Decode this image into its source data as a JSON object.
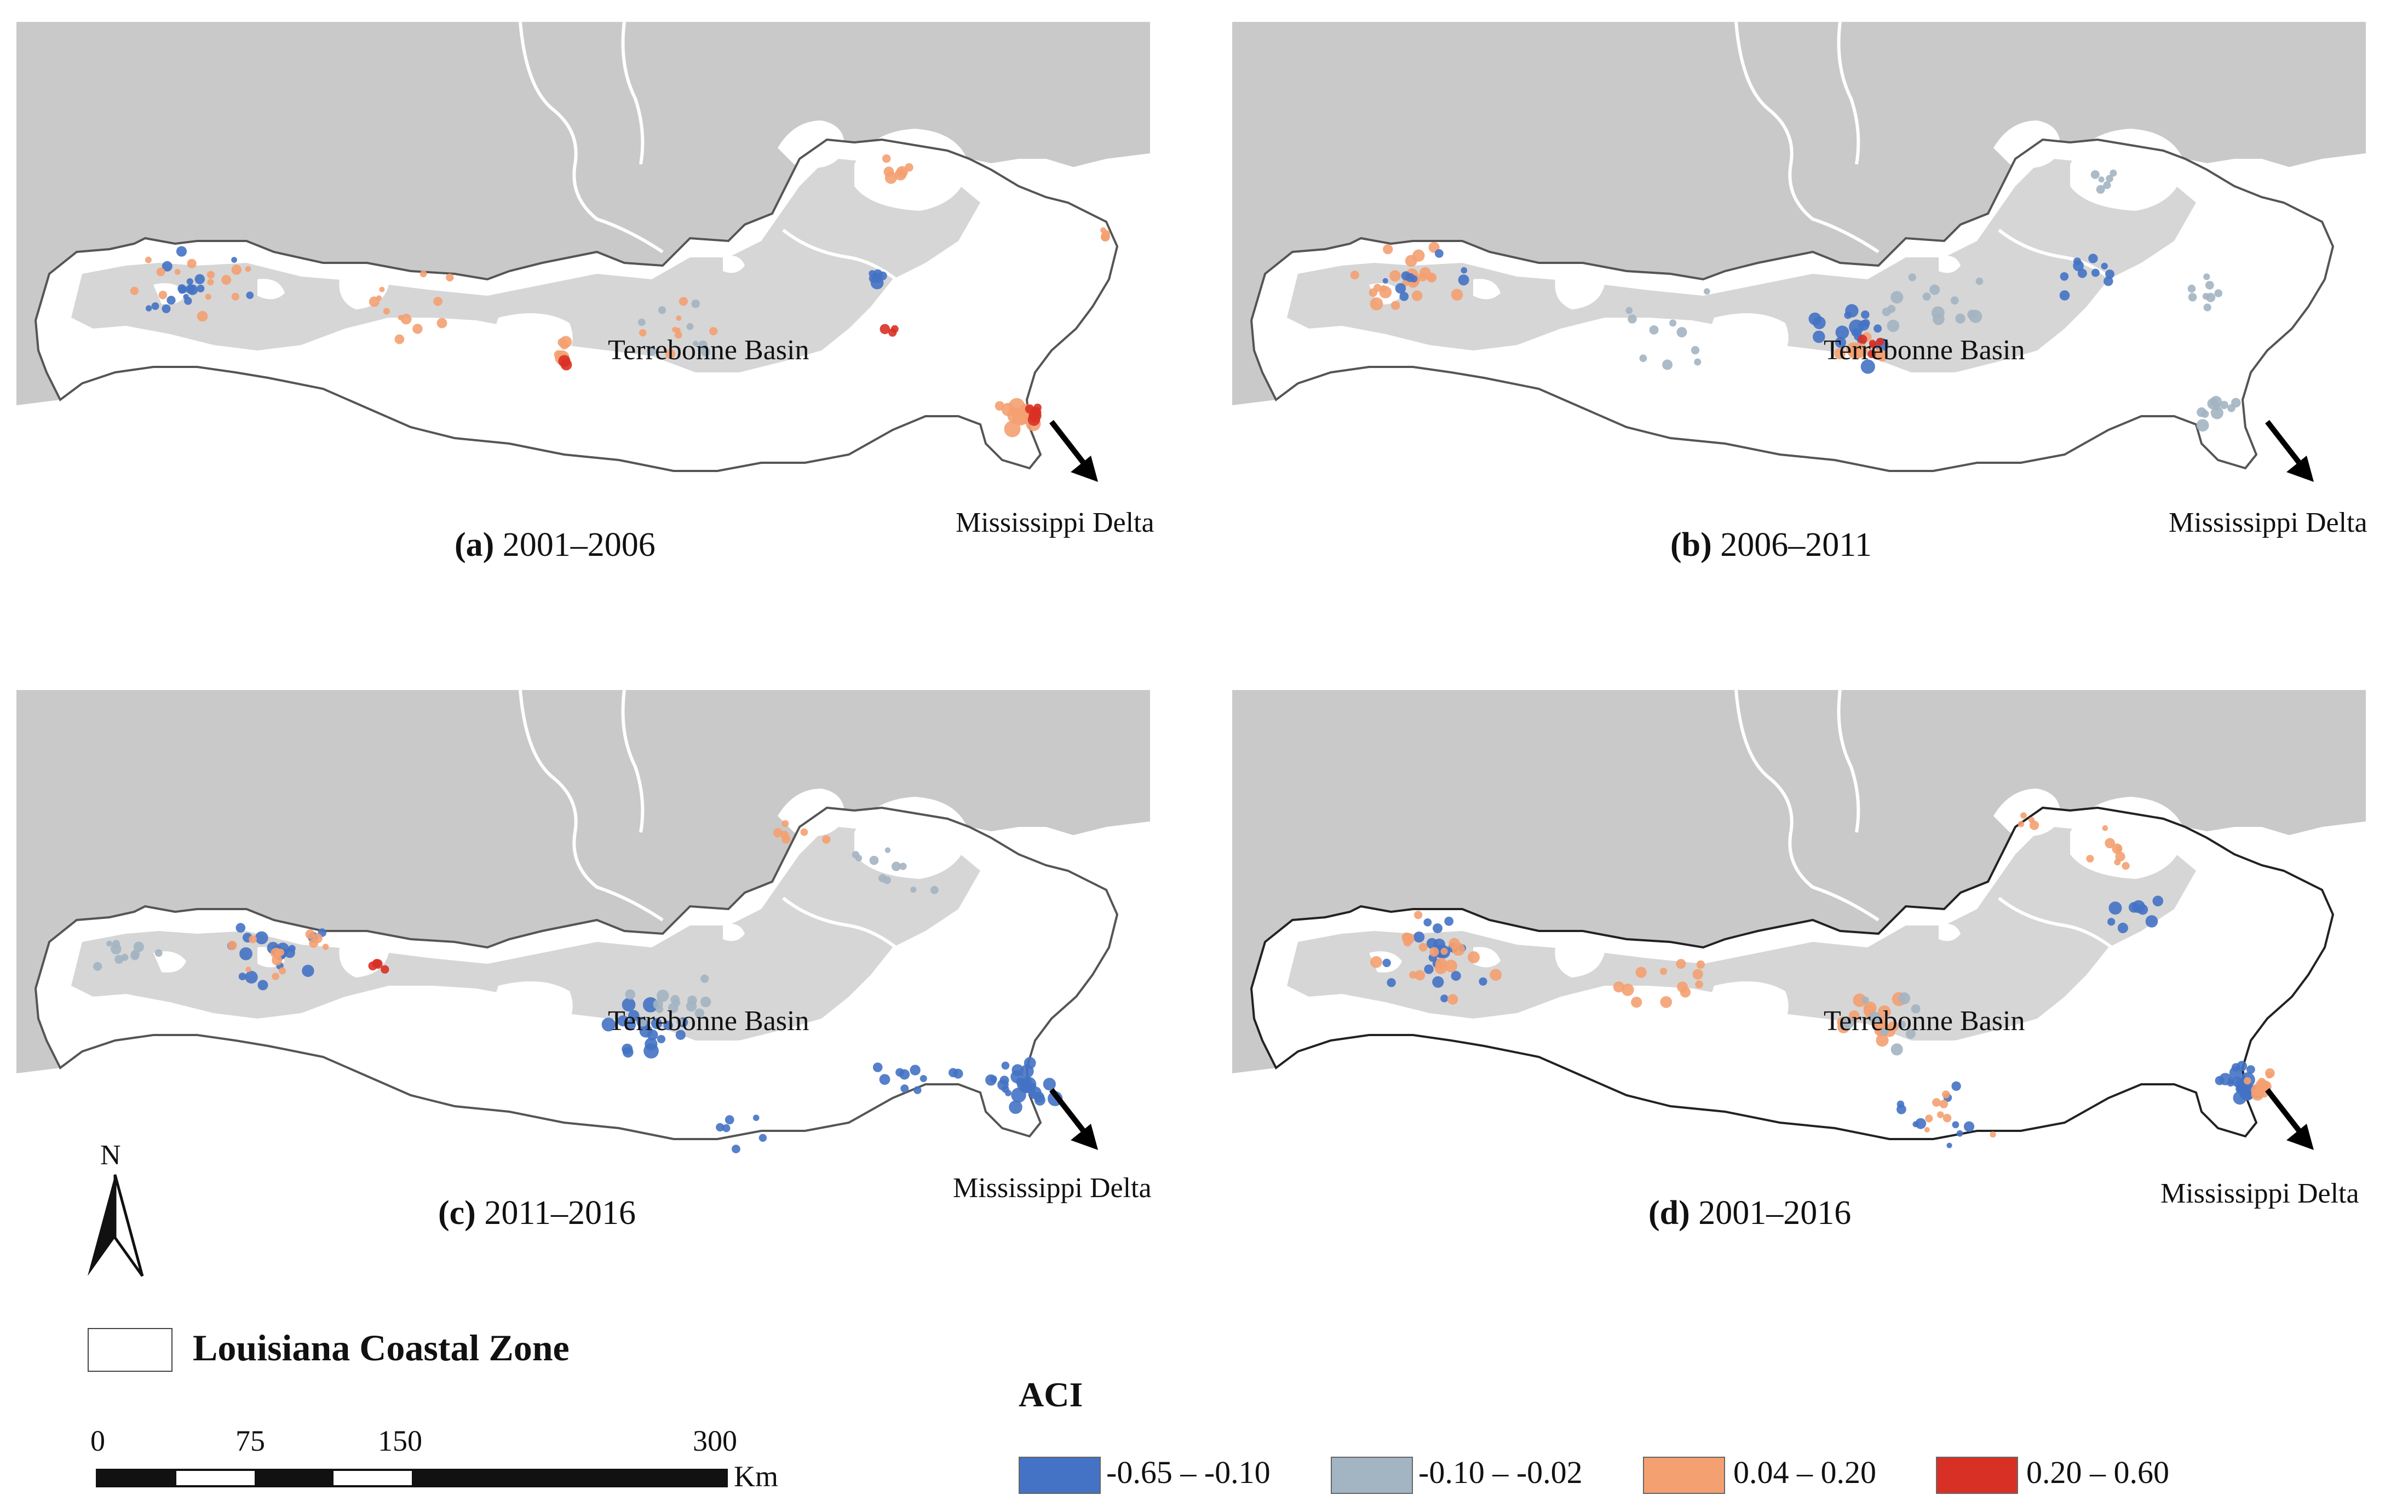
{
  "panels": [
    {
      "caption_letter": "(a)",
      "caption_years": "2001–2006",
      "basin_label": "Terrebonne Basin",
      "delta_label": "Mississippi Delta"
    },
    {
      "caption_letter": "(b)",
      "caption_years": "2006–2011",
      "basin_label": "Terrebonne Basin",
      "delta_label": "Mississippi Delta"
    },
    {
      "caption_letter": "(c)",
      "caption_years": "2011–2016",
      "basin_label": "Terrebonne Basin",
      "delta_label": "Mississippi Delta"
    },
    {
      "caption_letter": "(d)",
      "caption_years": "2001–2016",
      "basin_label": "Terrebonne Basin",
      "delta_label": "Mississippi Delta"
    }
  ],
  "legend": {
    "title": "ACI",
    "classes": [
      {
        "label": "-0.65 – -0.10",
        "color": "#4472c4"
      },
      {
        "label": "-0.10 – -0.02",
        "color": "#a3b4c2"
      },
      {
        "label": "0.04 – 0.20",
        "color": "#f4a071"
      },
      {
        "label": "0.20 – 0.60",
        "color": "#d93025"
      }
    ],
    "zone_label": "Louisiana Coastal Zone"
  },
  "scale_bar": {
    "ticks": [
      "0",
      "75",
      "150",
      "300"
    ],
    "unit": "Km"
  },
  "north_arrow": {
    "label": "N"
  },
  "colors": {
    "land": "#c9c9c9",
    "coast_fill": "#ffffff",
    "outline": "#555555"
  }
}
